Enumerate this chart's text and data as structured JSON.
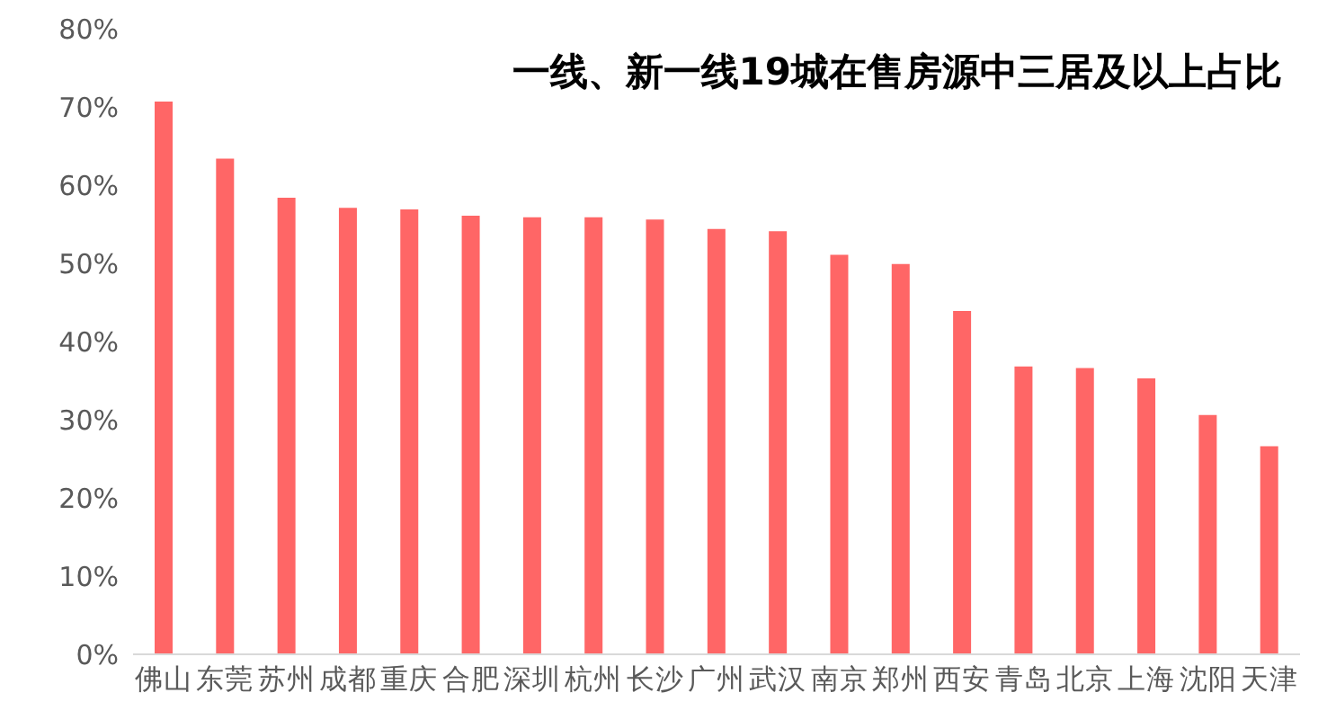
{
  "chart_data": {
    "type": "bar",
    "title": "一线、新一线19城在售房源中三居及以上占比",
    "categories": [
      "佛山",
      "东莞",
      "苏州",
      "成都",
      "重庆",
      "合肥",
      "深圳",
      "杭州",
      "长沙",
      "广州",
      "武汉",
      "南京",
      "郑州",
      "西安",
      "青岛",
      "北京",
      "上海",
      "沈阳",
      "天津"
    ],
    "values": [
      70.7,
      63.4,
      58.4,
      57.1,
      56.9,
      56.1,
      55.9,
      55.9,
      55.6,
      54.4,
      54.1,
      51.1,
      49.9,
      43.9,
      36.8,
      36.6,
      35.3,
      30.6,
      26.6
    ],
    "color": "#ff6666",
    "ylim": [
      0,
      80
    ],
    "yticks": [
      {
        "value": 0,
        "label": "0%"
      },
      {
        "value": 10,
        "label": "10%"
      },
      {
        "value": 20,
        "label": "20%"
      },
      {
        "value": 30,
        "label": "30%"
      },
      {
        "value": 40,
        "label": "40%"
      },
      {
        "value": 50,
        "label": "50%"
      },
      {
        "value": 60,
        "label": "60%"
      },
      {
        "value": 70,
        "label": "70%"
      },
      {
        "value": 80,
        "label": "80%"
      }
    ],
    "grid": false
  }
}
